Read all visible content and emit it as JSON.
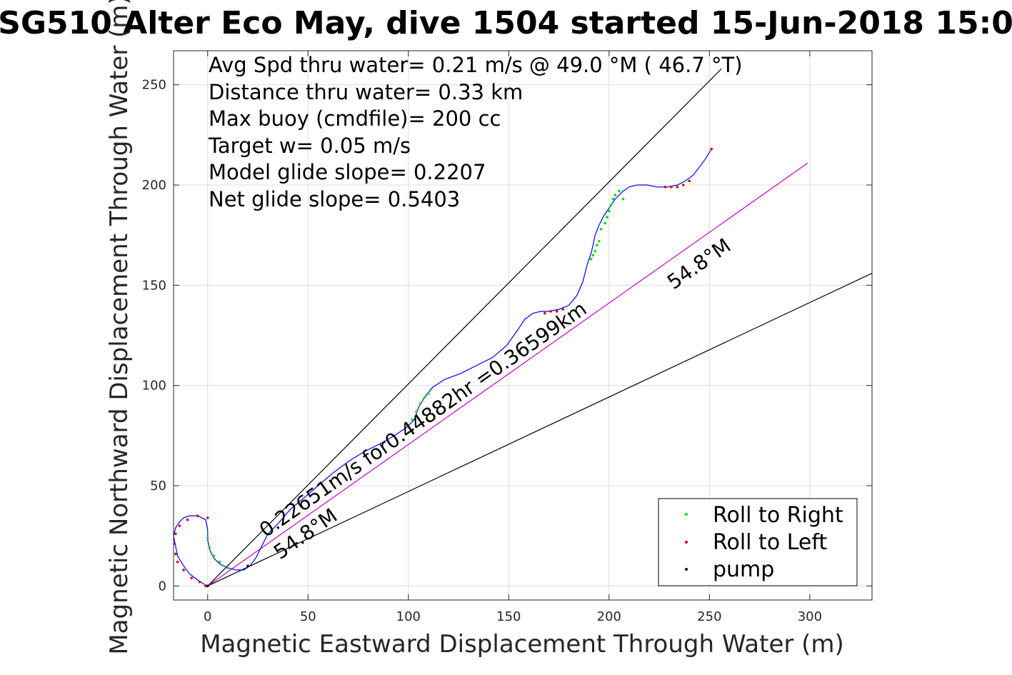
{
  "chart_data": {
    "type": "line",
    "title": "SG510 Alter Eco May, dive 1504 started 15-Jun-2018 15:0",
    "xlabel": "Magnetic Eastward Displacement Through Water (m)",
    "ylabel": "Magnetic Northward Displacement Through Water (m)",
    "xlim": [
      -17,
      331
    ],
    "ylim": [
      -7,
      267
    ],
    "xticks": [
      0,
      50,
      100,
      150,
      200,
      250,
      300
    ],
    "yticks": [
      0,
      50,
      100,
      150,
      200,
      250
    ],
    "grid": true,
    "legend_position": "bottom-right",
    "stats": [
      "Avg Spd thru water=  0.21 m/s @  49.0 °M ( 46.7 °T)",
      "Distance thru water=  0.33 km",
      "Max buoy (cmdfile)= 200 cc",
      "Target w= 0.05 m/s",
      "Model glide slope= 0.2207",
      "Net glide slope= 0.5403"
    ],
    "annotations": {
      "speed_label": "0.22651m/s for0.44882hr =0.36599km",
      "heading_label_1": "54.8°M",
      "heading_label_2": "54.8°M"
    },
    "reference_lines": [
      {
        "name": "upper-bound",
        "x": [
          0,
          256
        ],
        "y": [
          0,
          258
        ]
      },
      {
        "name": "lower-bound",
        "x": [
          0,
          331
        ],
        "y": [
          0,
          156
        ]
      },
      {
        "name": "heading-line",
        "x": [
          0,
          299
        ],
        "y": [
          0,
          211
        ]
      }
    ],
    "track": {
      "x": [
        0,
        -2,
        -5,
        -9,
        -12,
        -15,
        -16,
        -17,
        -16,
        -14,
        -12,
        -9,
        -5,
        -1,
        0,
        0,
        1,
        3,
        6,
        10,
        14,
        18,
        21,
        24,
        27,
        30,
        35,
        41,
        48,
        55,
        62,
        70,
        78,
        86,
        93,
        99,
        103,
        105,
        108,
        112,
        118,
        126,
        134,
        142,
        149,
        154,
        158,
        162,
        166,
        170,
        175,
        180,
        184,
        187,
        189,
        191,
        192,
        193,
        195,
        197,
        199,
        201,
        203,
        205,
        207,
        210,
        214,
        219,
        224,
        229,
        234,
        238,
        242,
        245,
        248,
        251
      ],
      "y": [
        0,
        1,
        3,
        6,
        10,
        15,
        20,
        25,
        29,
        32,
        34,
        35,
        35,
        33,
        28,
        23,
        18,
        14,
        11,
        9,
        8,
        8,
        10,
        14,
        20,
        26,
        31,
        38,
        44,
        50,
        56,
        62,
        67,
        71,
        75,
        79,
        83,
        89,
        94,
        99,
        103,
        106,
        110,
        114,
        120,
        127,
        133,
        136,
        137,
        137,
        138,
        140,
        145,
        152,
        160,
        166,
        170,
        175,
        180,
        184,
        187,
        190,
        193,
        195,
        197,
        199,
        200,
        200,
        199,
        199,
        200,
        202,
        205,
        209,
        213,
        218
      ]
    },
    "markers": {
      "roll_right": {
        "x": [
          0,
          1,
          3,
          6,
          10,
          102,
          104,
          106,
          108,
          110,
          196,
          198,
          199,
          200,
          201,
          202,
          203,
          205,
          207,
          191,
          192,
          193,
          194,
          195
        ],
        "y": [
          24,
          19,
          15,
          12,
          9,
          83,
          87,
          91,
          94,
          96,
          178,
          181,
          184,
          187,
          190,
          193,
          195,
          197,
          193,
          163,
          165,
          167,
          170,
          172
        ]
      },
      "roll_left": {
        "x": [
          -1,
          -4,
          -8,
          -12,
          -15,
          -16,
          -17,
          -16,
          -14,
          -10,
          -5,
          0,
          168,
          171,
          174,
          177,
          228,
          231,
          234,
          237,
          240,
          251
        ],
        "y": [
          0,
          2,
          4,
          8,
          12,
          16,
          21,
          26,
          30,
          33,
          35,
          34,
          136,
          137,
          137,
          138,
          199,
          199,
          199,
          200,
          202,
          218
        ]
      },
      "pump": {
        "x": [
          0,
          20
        ],
        "y": [
          0,
          10
        ]
      }
    },
    "legend": [
      {
        "label": "Roll to Right",
        "color": "#00e000"
      },
      {
        "label": "Roll to Left",
        "color": "#e00000"
      },
      {
        "label": "pump",
        "color": "#000000"
      }
    ],
    "colors": {
      "track": "#0000ff",
      "heading_line": "#c000c0",
      "reference": "#000000",
      "grid": "#dddddd"
    }
  }
}
